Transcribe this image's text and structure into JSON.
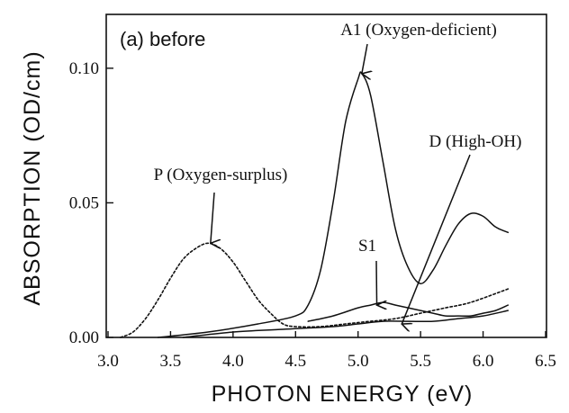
{
  "chart_data": {
    "type": "line",
    "panel_label": "(a) before",
    "xlabel": "PHOTON ENERGY (eV)",
    "ylabel": "ABSORPTION (OD/cm)",
    "xlim": [
      3.0,
      6.5
    ],
    "ylim": [
      0.0,
      0.12
    ],
    "xticks": [
      3.0,
      3.5,
      4.0,
      4.5,
      5.0,
      5.5,
      6.0,
      6.5
    ],
    "xtick_labels": [
      "3.0",
      "3.5",
      "4.0",
      "4.5",
      "5.0",
      "5.5",
      "6.0",
      "6.5"
    ],
    "yticks": [
      0.0,
      0.05,
      0.1
    ],
    "ytick_labels": [
      "0.00",
      "0.05",
      "0.10"
    ],
    "grid": false,
    "series": [
      {
        "name": "P (Oxygen-surplus)",
        "style": "dotted",
        "x": [
          3.1,
          3.2,
          3.3,
          3.4,
          3.5,
          3.6,
          3.7,
          3.8,
          3.9,
          4.0,
          4.1,
          4.2,
          4.3,
          4.4,
          4.5,
          4.7,
          4.9,
          5.1,
          5.3,
          5.5,
          5.7,
          5.9,
          6.2
        ],
        "y": [
          0.0,
          0.002,
          0.007,
          0.014,
          0.022,
          0.029,
          0.033,
          0.035,
          0.033,
          0.028,
          0.021,
          0.014,
          0.009,
          0.005,
          0.004,
          0.004,
          0.005,
          0.006,
          0.007,
          0.009,
          0.011,
          0.013,
          0.018
        ]
      },
      {
        "name": "A1 (Oxygen-deficient)",
        "style": "solid",
        "x": [
          3.4,
          3.8,
          4.2,
          4.5,
          4.6,
          4.7,
          4.8,
          4.9,
          5.0,
          5.03,
          5.1,
          5.2,
          5.3,
          5.4,
          5.5,
          5.6,
          5.7,
          5.8,
          5.9,
          6.0,
          6.1,
          6.2
        ],
        "y": [
          0.0,
          0.002,
          0.005,
          0.008,
          0.012,
          0.025,
          0.05,
          0.08,
          0.096,
          0.098,
          0.09,
          0.065,
          0.04,
          0.026,
          0.02,
          0.025,
          0.034,
          0.042,
          0.046,
          0.045,
          0.041,
          0.039
        ]
      },
      {
        "name": "S1",
        "style": "solid",
        "x": [
          4.6,
          4.8,
          5.0,
          5.1,
          5.2,
          5.3,
          5.4,
          5.5,
          5.6,
          5.7,
          5.8,
          5.9,
          6.0,
          6.1,
          6.2
        ],
        "y": [
          0.006,
          0.008,
          0.011,
          0.012,
          0.013,
          0.012,
          0.011,
          0.01,
          0.009,
          0.008,
          0.008,
          0.008,
          0.009,
          0.01,
          0.012
        ]
      },
      {
        "name": "D (High-OH)",
        "style": "solid",
        "x": [
          3.6,
          4.0,
          4.4,
          4.8,
          5.0,
          5.2,
          5.4,
          5.6,
          5.8,
          6.0,
          6.2
        ],
        "y": [
          0.0,
          0.002,
          0.003,
          0.004,
          0.005,
          0.006,
          0.006,
          0.006,
          0.007,
          0.008,
          0.01
        ]
      }
    ],
    "annotations": [
      {
        "text": "A1 (Oxygen-deficient)",
        "target": [
          5.03,
          0.098
        ]
      },
      {
        "text": "D (High-OH)",
        "target": [
          5.35,
          0.005
        ]
      },
      {
        "text": "P (Oxygen-surplus)",
        "target": [
          3.82,
          0.035
        ]
      },
      {
        "text": "S1",
        "target": [
          5.15,
          0.012
        ]
      }
    ]
  }
}
